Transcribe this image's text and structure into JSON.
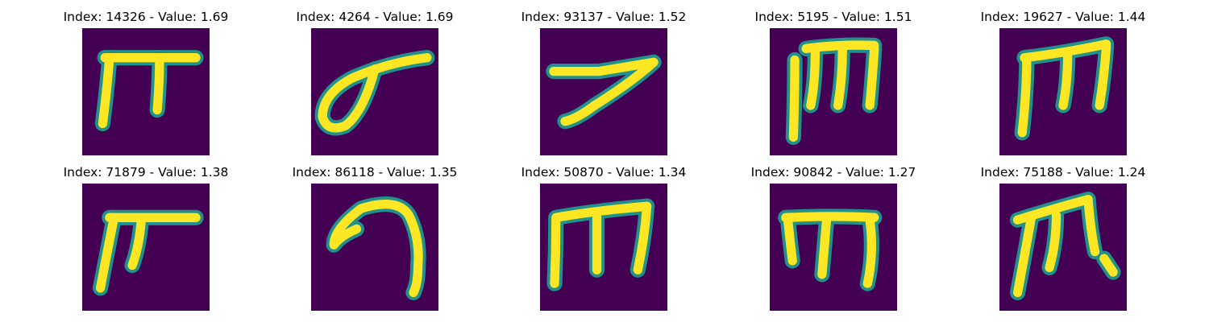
{
  "colors": {
    "background": "#440154",
    "edge": "#21918c",
    "stroke": "#fde725"
  },
  "panels": [
    {
      "index": "14326",
      "value": "1.69",
      "title": "Index: 14326 - Value: 1.69",
      "glyph": "pi-shape"
    },
    {
      "index": "4264",
      "value": "1.69",
      "title": "Index: 4264 - Value: 1.69",
      "glyph": "loop-with-bar"
    },
    {
      "index": "93137",
      "value": "1.52",
      "title": "Index: 93137 - Value: 1.52",
      "glyph": "seven-shape"
    },
    {
      "index": "5195",
      "value": "1.51",
      "title": "Index: 5195 - Value: 1.51",
      "glyph": "three-legged-bar"
    },
    {
      "index": "19627",
      "value": "1.44",
      "title": "Index: 19627 - Value: 1.44",
      "glyph": "m-shape"
    },
    {
      "index": "71879",
      "value": "1.38",
      "title": "Index: 71879 - Value: 1.38",
      "glyph": "pi-shape"
    },
    {
      "index": "86118",
      "value": "1.35",
      "title": "Index: 86118 - Value: 1.35",
      "glyph": "hook-shape"
    },
    {
      "index": "50870",
      "value": "1.34",
      "title": "Index: 50870 - Value: 1.34",
      "glyph": "m-shape"
    },
    {
      "index": "90842",
      "value": "1.27",
      "title": "Index: 90842 - Value: 1.27",
      "glyph": "three-legged-bar"
    },
    {
      "index": "75188",
      "value": "1.24",
      "title": "Index: 75188 - Value: 1.24",
      "glyph": "pi-shape-with-tail"
    }
  ]
}
